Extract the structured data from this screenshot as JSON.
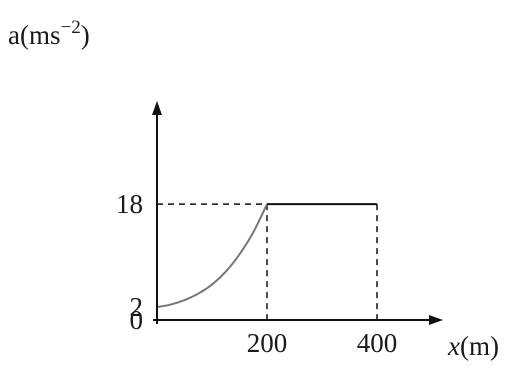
{
  "chart_data": {
    "type": "line",
    "ylabel_main": "a(ms",
    "ylabel_exp": "−2",
    "ylabel_close": ")",
    "xlabel_var": "x",
    "xlabel_unit": "(m)",
    "x_ticks": [
      "200",
      "400"
    ],
    "y_ticks": [
      "0",
      "2",
      "18"
    ],
    "x_tick_values": [
      200,
      400
    ],
    "y_tick_values": [
      0,
      2,
      18
    ],
    "xlim": [
      0,
      520
    ],
    "ylim": [
      0,
      34
    ],
    "series": [
      {
        "style": "curve",
        "x": [
          0,
          25,
          50,
          75,
          100,
          125,
          150,
          175,
          200
        ],
        "y": [
          2,
          2.4,
          3.1,
          4.1,
          5.5,
          7.5,
          10.2,
          13.6,
          18
        ]
      },
      {
        "style": "flat",
        "x": [
          200,
          400
        ],
        "y": [
          18,
          18
        ]
      }
    ],
    "guides": {
      "horizontal_at_y": 18,
      "vertical_at_x": [
        200,
        400
      ]
    },
    "grid": false,
    "legend": "none",
    "colors": {
      "axis": "#111111",
      "curve": "#777777"
    }
  }
}
